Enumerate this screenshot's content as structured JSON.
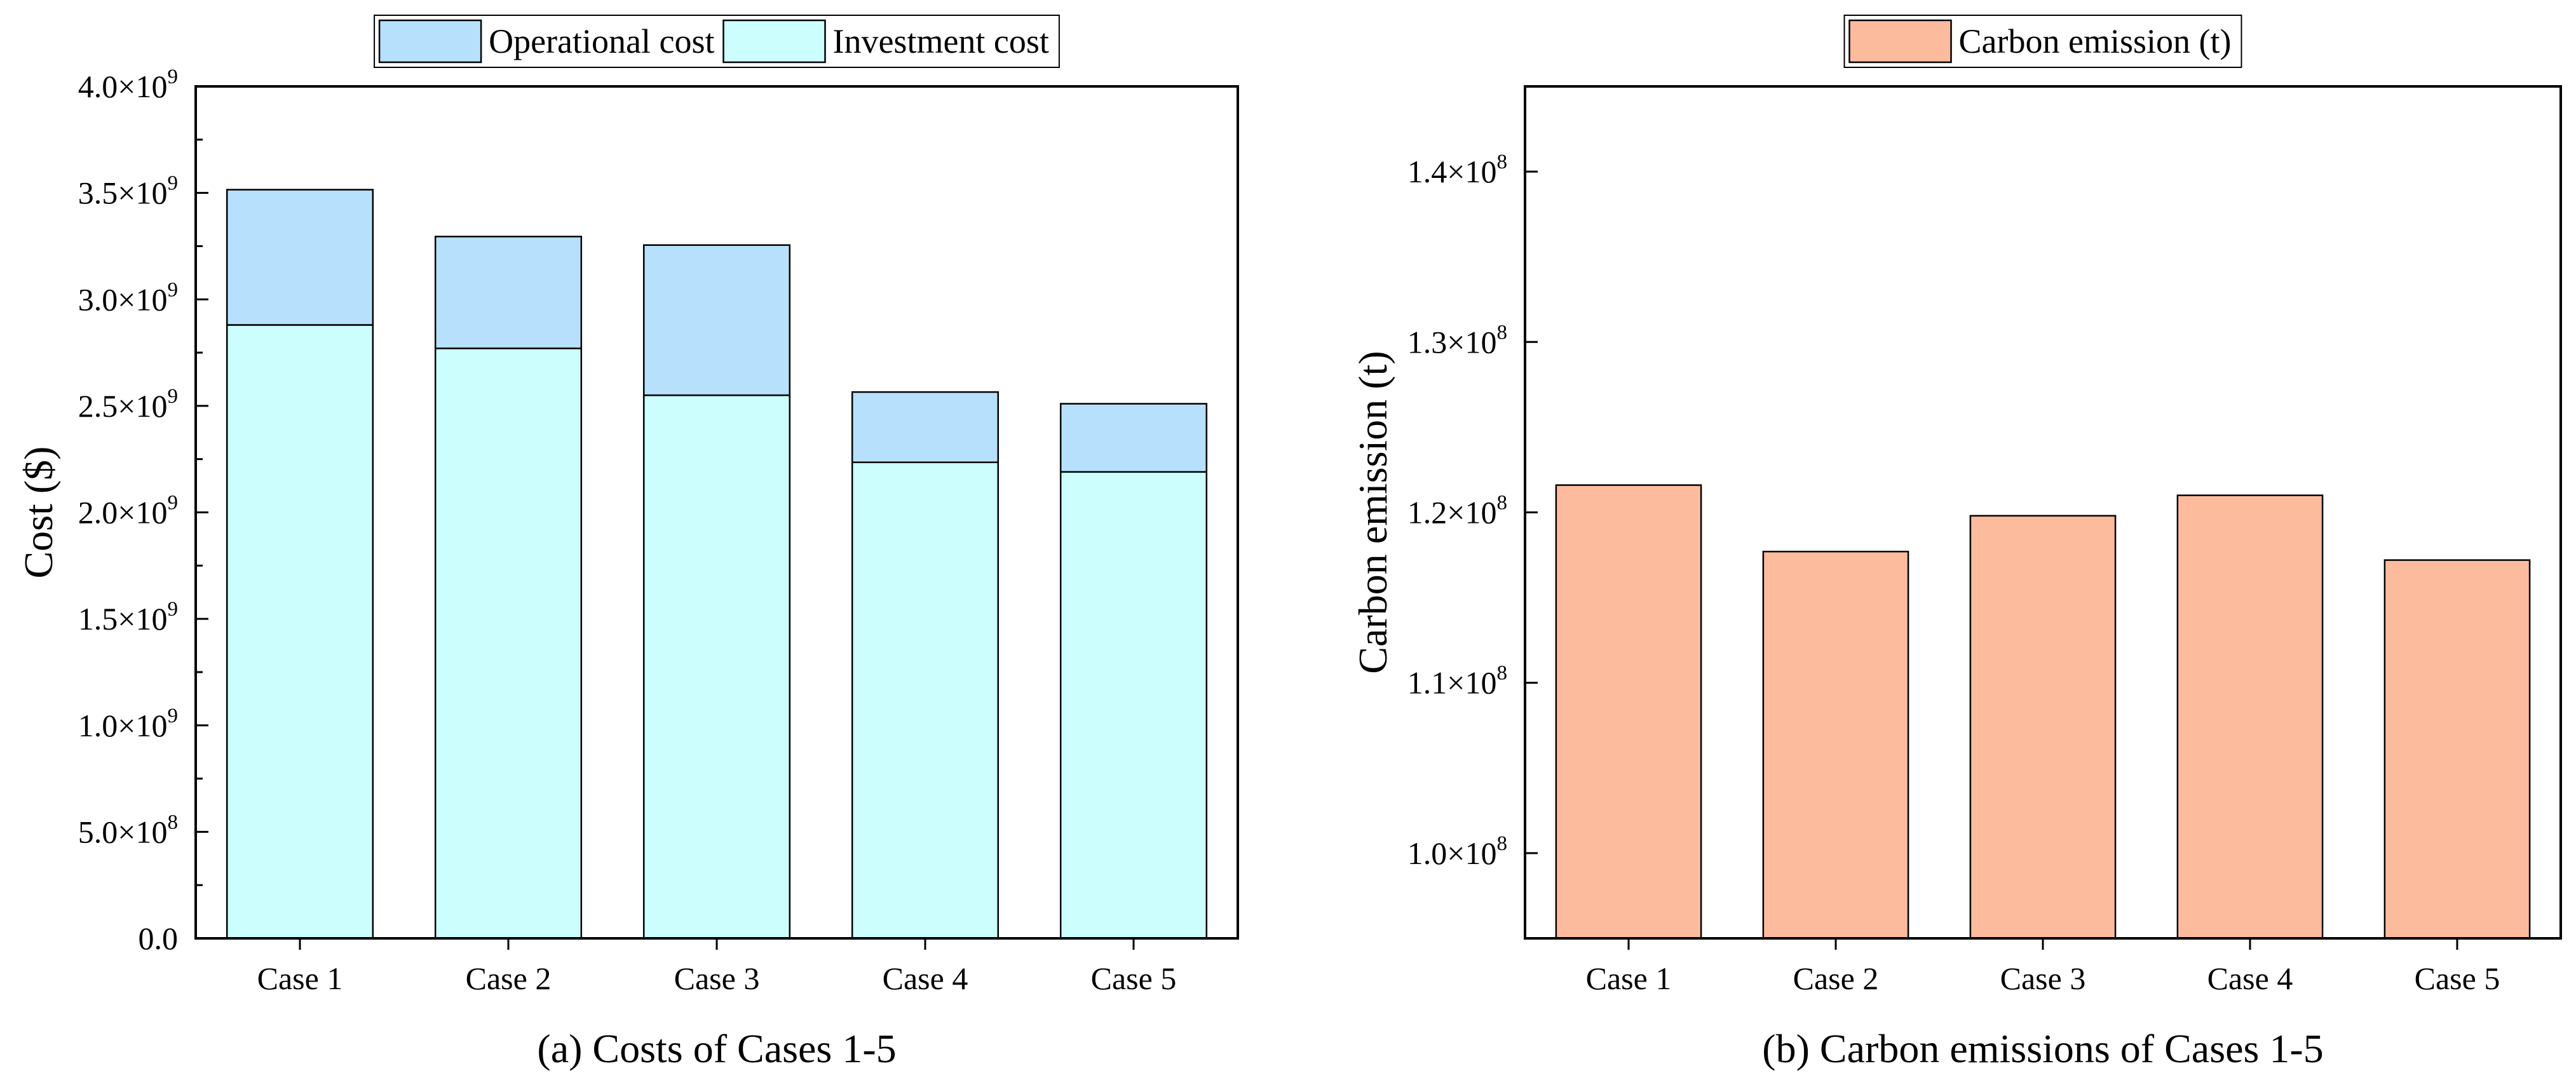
{
  "chart_data": [
    {
      "type": "bar",
      "stacked": true,
      "caption": "(a) Costs of Cases 1-5",
      "title": "",
      "xlabel": "",
      "ylabel": "Cost ($)",
      "categories": [
        "Case 1",
        "Case 2",
        "Case 3",
        "Case 4",
        "Case 5"
      ],
      "ylim": [
        0,
        4000000000
      ],
      "yticks": [
        0,
        500000000,
        1000000000,
        1500000000,
        2000000000,
        2500000000,
        3000000000,
        3500000000,
        4000000000
      ],
      "ytick_labels": [
        {
          "mantissa": "0.0",
          "base": "",
          "exp": ""
        },
        {
          "mantissa": "5.0",
          "base": "×10",
          "exp": "8"
        },
        {
          "mantissa": "1.0",
          "base": "×10",
          "exp": "9"
        },
        {
          "mantissa": "1.5",
          "base": "×10",
          "exp": "9"
        },
        {
          "mantissa": "2.0",
          "base": "×10",
          "exp": "9"
        },
        {
          "mantissa": "2.5",
          "base": "×10",
          "exp": "9"
        },
        {
          "mantissa": "3.0",
          "base": "×10",
          "exp": "9"
        },
        {
          "mantissa": "3.5",
          "base": "×10",
          "exp": "9"
        },
        {
          "mantissa": "4.0",
          "base": "×10",
          "exp": "9"
        }
      ],
      "legend_position": "top-center",
      "series": [
        {
          "name": "Investment cost",
          "color": "#ccfefe",
          "values": [
            2880000000,
            2770000000,
            2550000000,
            2235000000,
            2190000000
          ]
        },
        {
          "name": "Operational cost",
          "color": "#b6e0fb",
          "values": [
            635000000,
            525000000,
            705000000,
            330000000,
            320000000
          ]
        }
      ],
      "legend": [
        {
          "name": "Operational cost",
          "color": "#b6e0fb"
        },
        {
          "name": "Investment cost",
          "color": "#ccfefe"
        }
      ]
    },
    {
      "type": "bar",
      "caption": "(b) Carbon emissions of Cases 1-5",
      "title": "",
      "xlabel": "",
      "ylabel": "Carbon emission (t)",
      "categories": [
        "Case 1",
        "Case 2",
        "Case 3",
        "Case 4",
        "Case 5"
      ],
      "ylim": [
        95000000,
        145000000
      ],
      "yticks": [
        100000000,
        110000000,
        120000000,
        130000000,
        140000000
      ],
      "ytick_labels": [
        {
          "mantissa": "1.0",
          "base": "×10",
          "exp": "8"
        },
        {
          "mantissa": "1.1",
          "base": "×10",
          "exp": "8"
        },
        {
          "mantissa": "1.2",
          "base": "×10",
          "exp": "8"
        },
        {
          "mantissa": "1.3",
          "base": "×10",
          "exp": "8"
        },
        {
          "mantissa": "1.4",
          "base": "×10",
          "exp": "8"
        }
      ],
      "legend_position": "top-center",
      "series": [
        {
          "name": "Carbon emission (t)",
          "color": "#fdbb9e",
          "values": [
            121600000,
            117700000,
            119800000,
            121000000,
            117200000
          ]
        }
      ],
      "legend": [
        {
          "name": "Carbon emission (t)",
          "color": "#fdbb9e"
        }
      ]
    }
  ]
}
